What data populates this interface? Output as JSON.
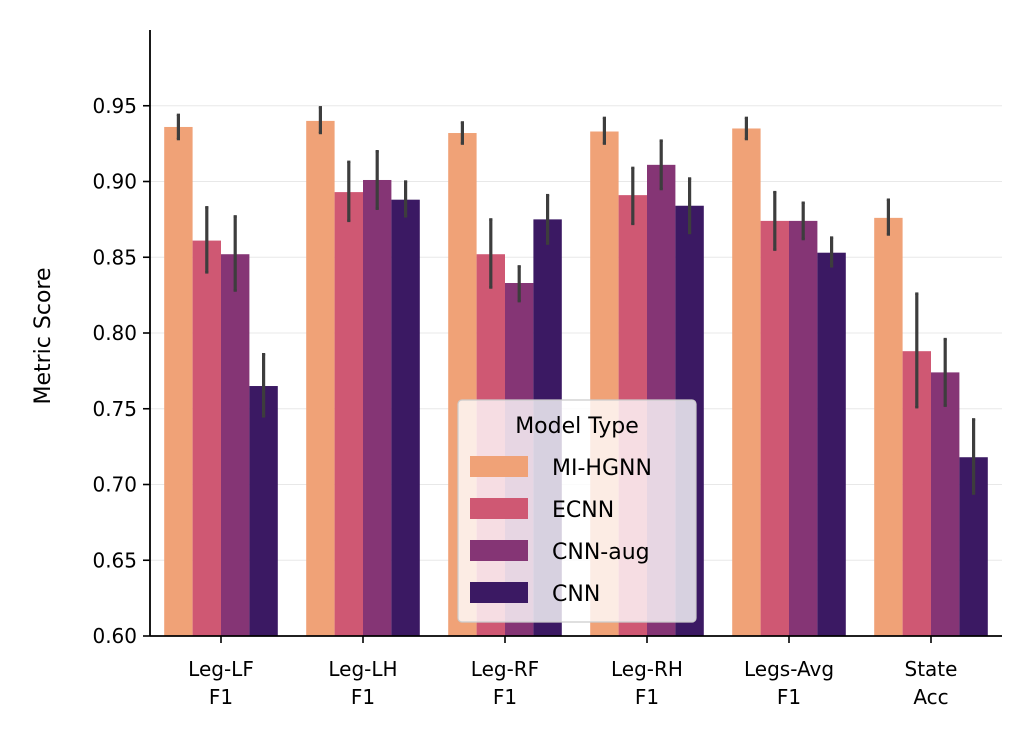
{
  "chart_data": {
    "type": "bar",
    "title": "",
    "xlabel": "",
    "ylabel": "Metric Score",
    "ylim": [
      0.6,
      1.0
    ],
    "yticks": [
      "0.60",
      "0.65",
      "0.70",
      "0.75",
      "0.80",
      "0.85",
      "0.90",
      "0.95"
    ],
    "categories": [
      [
        "Leg-LF",
        "F1"
      ],
      [
        "Leg-LH",
        "F1"
      ],
      [
        "Leg-RF",
        "F1"
      ],
      [
        "Leg-RH",
        "F1"
      ],
      [
        "Legs-Avg",
        "F1"
      ],
      [
        "State",
        "Acc"
      ]
    ],
    "grid": "horizontal",
    "legend": {
      "title": "Model Type",
      "placement": "lower-center"
    },
    "series": [
      {
        "name": "MI-HGNN",
        "color": "#f0a277",
        "values": [
          0.936,
          0.94,
          0.932,
          0.933,
          0.935,
          0.876
        ],
        "err_low": [
          0.928,
          0.932,
          0.925,
          0.925,
          0.928,
          0.865
        ],
        "err_high": [
          0.944,
          0.949,
          0.939,
          0.942,
          0.942,
          0.888
        ]
      },
      {
        "name": "ECNN",
        "color": "#cf5873",
        "values": [
          0.861,
          0.893,
          0.852,
          0.891,
          0.874,
          0.788
        ],
        "err_low": [
          0.84,
          0.874,
          0.83,
          0.872,
          0.855,
          0.751
        ],
        "err_high": [
          0.883,
          0.913,
          0.875,
          0.909,
          0.893,
          0.826
        ]
      },
      {
        "name": "CNN-aug",
        "color": "#853575",
        "values": [
          0.852,
          0.901,
          0.833,
          0.911,
          0.874,
          0.774
        ],
        "err_low": [
          0.828,
          0.882,
          0.821,
          0.895,
          0.862,
          0.752
        ],
        "err_high": [
          0.877,
          0.92,
          0.844,
          0.927,
          0.886,
          0.796
        ]
      },
      {
        "name": "CNN",
        "color": "#3b1963",
        "values": [
          0.765,
          0.888,
          0.875,
          0.884,
          0.853,
          0.718
        ],
        "err_low": [
          0.745,
          0.877,
          0.859,
          0.866,
          0.844,
          0.694
        ],
        "err_high": [
          0.786,
          0.9,
          0.891,
          0.902,
          0.863,
          0.743
        ]
      }
    ]
  }
}
